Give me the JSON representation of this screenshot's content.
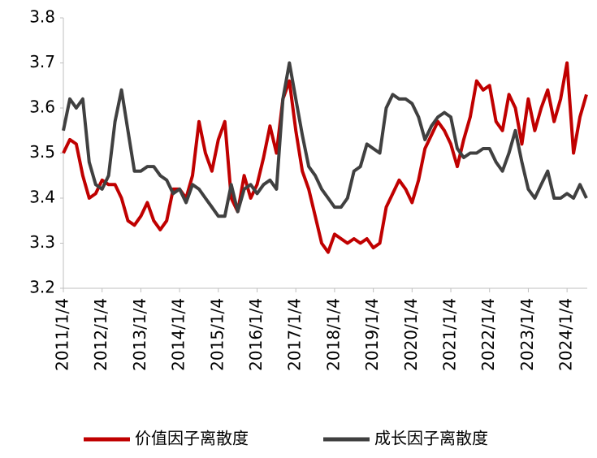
{
  "chart_data": {
    "type": "line",
    "categories": [
      "2011/1/4",
      null,
      null,
      null,
      null,
      null,
      "2012/1/4",
      null,
      null,
      null,
      null,
      null,
      "2013/1/4",
      null,
      null,
      null,
      null,
      null,
      "2014/1/4",
      null,
      null,
      null,
      null,
      null,
      "2015/1/4",
      null,
      null,
      null,
      null,
      null,
      "2016/1/4",
      null,
      null,
      null,
      null,
      null,
      "2017/1/4",
      null,
      null,
      null,
      null,
      null,
      "2018/1/4",
      null,
      null,
      null,
      null,
      null,
      "2019/1/4",
      null,
      null,
      null,
      null,
      null,
      "2020/1/4",
      null,
      null,
      null,
      null,
      null,
      "2021/1/4",
      null,
      null,
      null,
      null,
      null,
      "2022/1/4",
      null,
      null,
      null,
      null,
      null,
      "2023/1/4",
      null,
      null,
      null,
      null,
      null,
      "2024/1/4",
      null,
      null,
      null
    ],
    "series": [
      {
        "name": "价值因子离散度",
        "color": "#c00000",
        "values": [
          3.5,
          3.53,
          3.52,
          3.45,
          3.4,
          3.41,
          3.44,
          3.43,
          3.43,
          3.4,
          3.35,
          3.34,
          3.36,
          3.39,
          3.35,
          3.33,
          3.35,
          3.42,
          3.42,
          3.4,
          3.45,
          3.57,
          3.5,
          3.46,
          3.53,
          3.57,
          3.4,
          3.37,
          3.45,
          3.4,
          3.43,
          3.49,
          3.56,
          3.5,
          3.62,
          3.66,
          3.55,
          3.46,
          3.42,
          3.36,
          3.3,
          3.28,
          3.32,
          3.31,
          3.3,
          3.31,
          3.3,
          3.31,
          3.29,
          3.3,
          3.38,
          3.41,
          3.44,
          3.42,
          3.39,
          3.44,
          3.51,
          3.54,
          3.57,
          3.55,
          3.52,
          3.47,
          3.53,
          3.58,
          3.66,
          3.64,
          3.65,
          3.57,
          3.55,
          3.63,
          3.6,
          3.52,
          3.62,
          3.55,
          3.6,
          3.64,
          3.57,
          3.62,
          3.7,
          3.5,
          3.58,
          3.63
        ]
      },
      {
        "name": "成长因子离散度",
        "color": "#404040",
        "values": [
          3.55,
          3.62,
          3.6,
          3.62,
          3.48,
          3.43,
          3.42,
          3.45,
          3.57,
          3.64,
          3.55,
          3.46,
          3.46,
          3.47,
          3.47,
          3.45,
          3.44,
          3.41,
          3.42,
          3.39,
          3.43,
          3.42,
          3.4,
          3.38,
          3.36,
          3.36,
          3.43,
          3.37,
          3.42,
          3.43,
          3.41,
          3.43,
          3.44,
          3.42,
          3.62,
          3.7,
          3.62,
          3.54,
          3.47,
          3.45,
          3.42,
          3.4,
          3.38,
          3.38,
          3.4,
          3.46,
          3.47,
          3.52,
          3.51,
          3.5,
          3.6,
          3.63,
          3.62,
          3.62,
          3.61,
          3.58,
          3.53,
          3.56,
          3.58,
          3.59,
          3.58,
          3.51,
          3.49,
          3.5,
          3.5,
          3.51,
          3.51,
          3.48,
          3.46,
          3.5,
          3.55,
          3.48,
          3.42,
          3.4,
          3.43,
          3.46,
          3.4,
          3.4,
          3.41,
          3.4,
          3.43,
          3.4
        ]
      }
    ],
    "ylim": [
      3.2,
      3.8
    ],
    "yticks": [
      3.2,
      3.3,
      3.4,
      3.5,
      3.6,
      3.7,
      3.8
    ]
  }
}
